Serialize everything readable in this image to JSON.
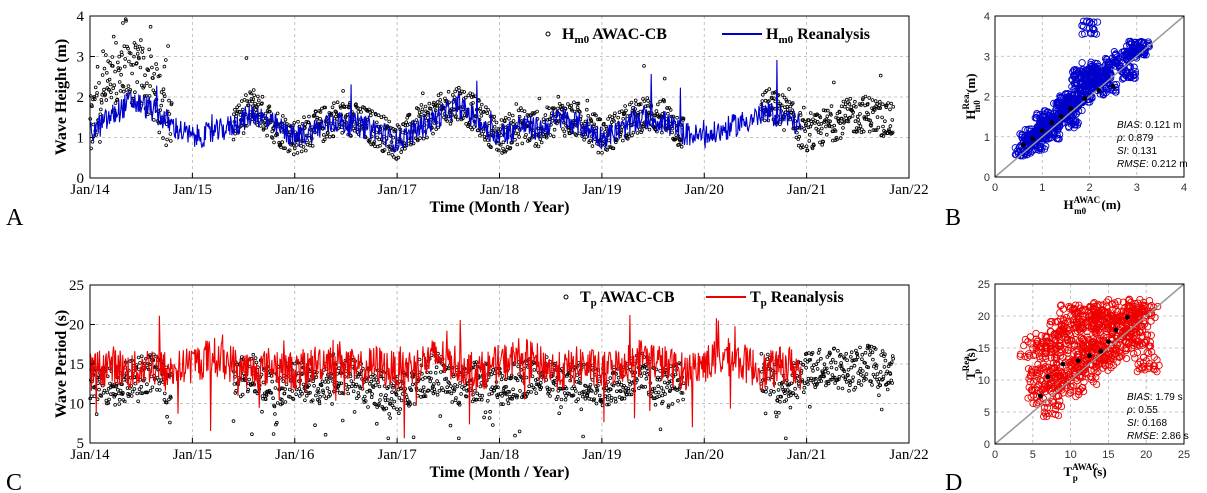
{
  "chart_data": [
    {
      "panel": "A",
      "type": "line",
      "xlabel": "Time (Month / Year)",
      "ylabel": "Wave Height (m)",
      "xticks": [
        "Jan/14",
        "Jan/15",
        "Jan/16",
        "Jan/17",
        "Jan/18",
        "Jan/19",
        "Jan/20",
        "Jan/21",
        "Jan/22"
      ],
      "xlim": [
        2014,
        2022
      ],
      "ylim": [
        0,
        4
      ],
      "yticks": [
        0,
        1,
        2,
        3,
        4
      ],
      "grid": true,
      "legend_position": "top-right",
      "series": [
        {
          "name": "AWAC-CB",
          "legend_main": "H",
          "legend_sub": "m0",
          "legend_rest": " AWAC-CB",
          "style": "scatter-dots",
          "color": "#000000",
          "x": [
            2014.0,
            2014.2,
            2014.4,
            2014.6,
            2014.8,
            2015.4,
            2015.6,
            2015.8,
            2016.0,
            2016.2,
            2016.4,
            2016.6,
            2016.8,
            2017.0,
            2017.2,
            2017.4,
            2017.6,
            2017.8,
            2018.0,
            2018.2,
            2018.4,
            2018.6,
            2018.8,
            2019.0,
            2019.2,
            2019.4,
            2019.6,
            2019.8,
            2020.6,
            2020.8,
            2021.0,
            2021.2,
            2021.4,
            2021.6,
            2021.8
          ],
          "y": [
            1.2,
            2.2,
            2.6,
            2.3,
            1.3,
            1.3,
            1.8,
            1.3,
            1.0,
            1.2,
            1.5,
            1.4,
            1.2,
            0.9,
            1.3,
            1.6,
            1.9,
            1.5,
            1.0,
            1.3,
            1.2,
            1.5,
            1.4,
            1.0,
            1.3,
            1.6,
            1.5,
            1.1,
            1.8,
            1.6,
            1.0,
            1.3,
            1.5,
            1.6,
            1.4
          ]
        },
        {
          "name": "Reanalysis",
          "legend_main": "H",
          "legend_sub": "m0",
          "legend_rest": " Reanalysis",
          "style": "line",
          "color": "#0000cc",
          "x": [
            2014.0,
            2014.2,
            2014.4,
            2014.6,
            2014.8,
            2015.0,
            2015.2,
            2015.4,
            2015.6,
            2015.8,
            2016.0,
            2016.2,
            2016.4,
            2016.6,
            2016.8,
            2017.0,
            2017.2,
            2017.4,
            2017.6,
            2017.8,
            2018.0,
            2018.2,
            2018.4,
            2018.6,
            2018.8,
            2019.0,
            2019.2,
            2019.4,
            2019.6,
            2019.8,
            2020.0,
            2020.2,
            2020.4,
            2020.6,
            2020.8,
            2021.0
          ],
          "y": [
            1.1,
            1.5,
            1.9,
            1.7,
            1.3,
            1.0,
            1.1,
            1.3,
            1.6,
            1.3,
            1.0,
            1.2,
            1.4,
            1.3,
            1.2,
            0.9,
            1.2,
            1.5,
            1.8,
            1.4,
            1.0,
            1.3,
            1.2,
            1.5,
            1.3,
            1.0,
            1.2,
            1.5,
            1.4,
            1.1,
            1.0,
            1.2,
            1.4,
            1.6,
            1.5,
            1.2
          ]
        }
      ]
    },
    {
      "panel": "B",
      "type": "scatter",
      "xlabel_main": "H",
      "xlabel_sub": "m0",
      "xlabel_sup": "AWAC",
      "xlabel_unit": " (m)",
      "ylabel_main": "H",
      "ylabel_sub": "m0",
      "ylabel_sup": "Rea.",
      "ylabel_unit": " (m)",
      "xlim": [
        0,
        4
      ],
      "ylim": [
        0,
        4
      ],
      "xticks": [
        0,
        1,
        2,
        3,
        4
      ],
      "yticks": [
        0,
        1,
        2,
        3,
        4
      ],
      "grid": true,
      "color": "#0000cc",
      "points_x": [
        0.6,
        0.7,
        0.8,
        0.9,
        1.0,
        1.0,
        1.1,
        1.2,
        1.3,
        1.4,
        1.5,
        1.6,
        1.7,
        1.8,
        1.9,
        2.0,
        2.1,
        2.2,
        2.3,
        2.5,
        2.7,
        2.9,
        3.1,
        1.2,
        1.5,
        1.8,
        2.0,
        2.4,
        0.9,
        1.6,
        2.8,
        3.0,
        2.0
      ],
      "points_y": [
        0.7,
        0.9,
        1.0,
        1.1,
        1.1,
        1.4,
        1.3,
        1.5,
        1.4,
        1.7,
        1.6,
        1.9,
        1.8,
        2.2,
        2.0,
        2.3,
        2.4,
        2.6,
        2.5,
        2.8,
        3.0,
        3.1,
        3.2,
        1.1,
        1.9,
        2.5,
        2.7,
        2.2,
        0.8,
        1.4,
        2.6,
        3.2,
        3.7
      ],
      "quantiles_x": [
        0.6,
        0.8,
        1.0,
        1.2,
        1.4,
        1.6,
        1.9,
        2.2,
        2.5
      ],
      "quantiles_y": [
        0.8,
        0.95,
        1.15,
        1.35,
        1.5,
        1.7,
        1.95,
        2.15,
        2.25
      ],
      "stats": [
        {
          "label": "BIAS",
          "value": ": 0.121 m"
        },
        {
          "label": "ρ",
          "value": ": 0.879"
        },
        {
          "label": "SI",
          "value": ": 0.131"
        },
        {
          "label": "RMSE",
          "value": ": 0.212 m"
        }
      ]
    },
    {
      "panel": "C",
      "type": "line",
      "xlabel": "Time (Month / Year)",
      "ylabel": "Wave Period (s)",
      "xticks": [
        "Jan/14",
        "Jan/15",
        "Jan/16",
        "Jan/17",
        "Jan/18",
        "Jan/19",
        "Jan/20",
        "Jan/21",
        "Jan/22"
      ],
      "xlim": [
        2014,
        2022
      ],
      "ylim": [
        5,
        25
      ],
      "yticks": [
        5,
        10,
        15,
        20,
        25
      ],
      "grid": true,
      "legend_position": "top-right",
      "series": [
        {
          "name": "AWAC-CB",
          "legend_main": "T",
          "legend_sub": "p",
          "legend_rest": " AWAC-CB",
          "style": "scatter-dots",
          "color": "#000000",
          "x": [
            2014.0,
            2014.2,
            2014.4,
            2014.6,
            2014.8,
            2015.4,
            2015.6,
            2015.8,
            2016.0,
            2016.2,
            2016.4,
            2016.6,
            2016.8,
            2017.0,
            2017.2,
            2017.4,
            2017.6,
            2017.8,
            2018.0,
            2018.2,
            2018.4,
            2018.6,
            2018.8,
            2019.0,
            2019.2,
            2019.4,
            2019.6,
            2019.8,
            2020.6,
            2020.8,
            2021.0,
            2021.2,
            2021.4,
            2021.6,
            2021.8
          ],
          "y": [
            13,
            12,
            13,
            14,
            12,
            13,
            14,
            12,
            13,
            12,
            14,
            13,
            12,
            11,
            13,
            14,
            12,
            13,
            12,
            13,
            14,
            12,
            13,
            12,
            13,
            14,
            12,
            13,
            14,
            12,
            14,
            15,
            14,
            15,
            14
          ]
        },
        {
          "name": "Reanalysis",
          "legend_main": "T",
          "legend_sub": "p",
          "legend_rest": " Reanalysis",
          "style": "line",
          "color": "#ee0000",
          "x": [
            2014.0,
            2014.2,
            2014.4,
            2014.6,
            2014.8,
            2015.0,
            2015.2,
            2015.4,
            2015.6,
            2015.8,
            2016.0,
            2016.2,
            2016.4,
            2016.6,
            2016.8,
            2017.0,
            2017.2,
            2017.4,
            2017.6,
            2017.8,
            2018.0,
            2018.2,
            2018.4,
            2018.6,
            2018.8,
            2019.0,
            2019.2,
            2019.4,
            2019.6,
            2019.8,
            2020.0,
            2020.2,
            2020.4,
            2020.6,
            2020.8,
            2021.0
          ],
          "y": [
            14,
            15,
            14,
            15,
            14,
            15,
            16,
            15,
            14,
            15,
            14,
            15,
            16,
            14,
            15,
            14,
            15,
            16,
            15,
            14,
            15,
            16,
            15,
            14,
            15,
            14,
            15,
            16,
            15,
            14,
            15,
            16,
            15,
            14,
            15,
            14
          ]
        }
      ]
    },
    {
      "panel": "D",
      "type": "scatter",
      "xlabel_main": "T",
      "xlabel_sub": "p",
      "xlabel_sup": "AWAC",
      "xlabel_unit": " (s)",
      "ylabel_main": "T",
      "ylabel_sub": "p",
      "ylabel_sup": "Rea.",
      "ylabel_unit": " (s)",
      "xlim": [
        0,
        25
      ],
      "ylim": [
        0,
        25
      ],
      "xticks": [
        0,
        5,
        10,
        15,
        20,
        25
      ],
      "yticks": [
        0,
        5,
        10,
        15,
        20,
        25
      ],
      "grid": true,
      "color": "#ee0000",
      "points_x": [
        6,
        7,
        8,
        9,
        10,
        11,
        12,
        13,
        14,
        15,
        16,
        17,
        18,
        19,
        20,
        7,
        9,
        11,
        13,
        15,
        17,
        19,
        8,
        10,
        12,
        14,
        16,
        18,
        10,
        12,
        14,
        6,
        20,
        5
      ],
      "points_y": [
        8,
        12,
        15,
        10,
        17,
        14,
        19,
        16,
        20,
        18,
        21,
        19,
        20,
        21,
        20,
        16,
        18,
        12,
        15,
        14,
        17,
        16,
        6,
        9,
        11,
        13,
        15,
        18,
        20,
        21,
        19,
        10,
        13,
        15
      ],
      "quantiles_x": [
        6,
        7,
        9,
        11,
        12.5,
        14,
        15,
        16,
        17.5
      ],
      "quantiles_y": [
        7.5,
        10.5,
        12.5,
        13,
        13.8,
        14.5,
        16,
        17.8,
        19.8
      ],
      "stats": [
        {
          "label": "BIAS",
          "value": ": 1.79 s"
        },
        {
          "label": "ρ",
          "value": ": 0.55"
        },
        {
          "label": "SI",
          "value": ": 0.168"
        },
        {
          "label": "RMSE",
          "value": ": 2.86 s"
        }
      ]
    }
  ]
}
